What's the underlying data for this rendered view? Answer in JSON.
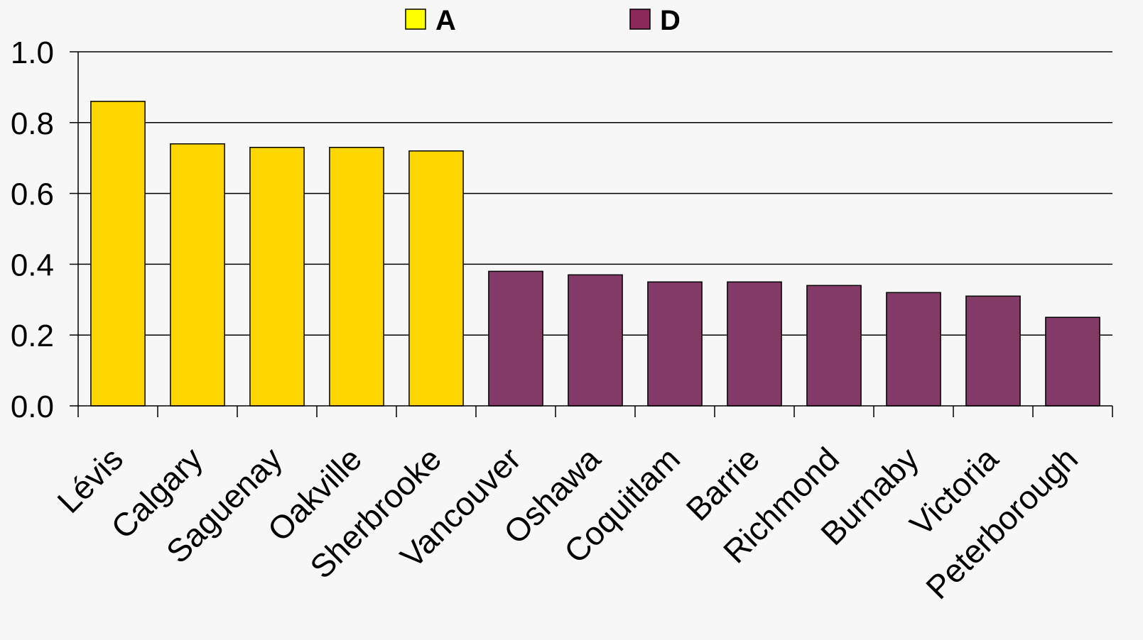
{
  "chart_data": {
    "type": "bar",
    "title": "",
    "xlabel": "",
    "ylabel": "",
    "categories": [
      "Lévis",
      "Calgary",
      "Saguenay",
      "Oakville",
      "Sherbrooke",
      "Vancouver",
      "Oshawa",
      "Coquitlam",
      "Barrie",
      "Richmond",
      "Burnaby",
      "Victoria",
      "Peterborough"
    ],
    "series": [
      {
        "name": "A",
        "color": "#ffd700",
        "legend_color": "#ffff00",
        "values": [
          0.86,
          0.74,
          0.73,
          0.73,
          0.72,
          null,
          null,
          null,
          null,
          null,
          null,
          null,
          null
        ]
      },
      {
        "name": "D",
        "color": "#843a67",
        "legend_color": "#8b2a5a",
        "values": [
          null,
          null,
          null,
          null,
          null,
          0.38,
          0.37,
          0.35,
          0.35,
          0.34,
          0.32,
          0.31,
          0.25
        ]
      }
    ],
    "ylim": [
      0,
      1.0
    ],
    "yticks": [
      "0.0",
      "0.2",
      "0.4",
      "0.6",
      "0.8",
      "1.0"
    ],
    "grid": true,
    "legend_position": "top-center",
    "background_color": "#f7f7f7"
  }
}
